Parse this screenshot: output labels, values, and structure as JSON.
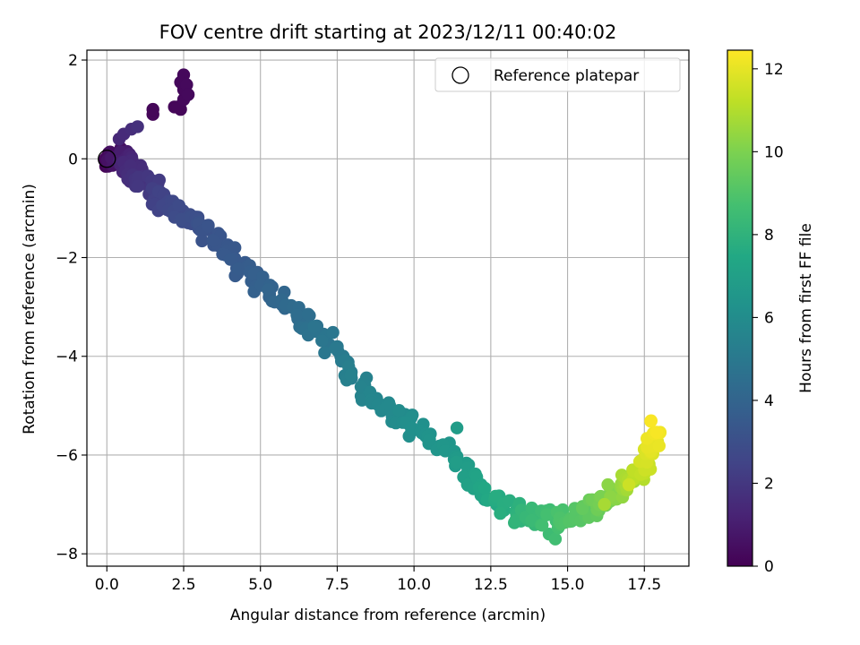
{
  "chart_data": {
    "type": "scatter",
    "title": "FOV centre drift starting at 2023/12/11 00:40:02",
    "xlabel": "Angular distance from reference (arcmin)",
    "ylabel": "Rotation from reference (arcmin)",
    "xlim": [
      -0.65,
      18.95
    ],
    "ylim": [
      -8.25,
      2.2
    ],
    "xticks": [
      0.0,
      2.5,
      5.0,
      7.5,
      10.0,
      12.5,
      15.0,
      17.5
    ],
    "xtick_labels": [
      "0.0",
      "2.5",
      "5.0",
      "7.5",
      "10.0",
      "12.5",
      "15.0",
      "17.5"
    ],
    "yticks": [
      2,
      0,
      -2,
      -4,
      -6,
      -8
    ],
    "ytick_labels": [
      "2",
      "0",
      "−2",
      "−4",
      "−6",
      "−8"
    ],
    "grid": true,
    "legend": {
      "position": "upper-right",
      "entries": [
        "Reference platepar"
      ]
    },
    "colorbar": {
      "label": "Hours from first FF file",
      "range": [
        0,
        12.45
      ],
      "colormap": "viridis",
      "ticks": [
        0,
        2,
        4,
        6,
        8,
        10,
        12
      ],
      "tick_labels": [
        "0",
        "2",
        "4",
        "6",
        "8",
        "10",
        "12"
      ]
    },
    "reference_point": {
      "x": 0.0,
      "y": 0.0,
      "name": "Reference platepar"
    },
    "anchors": [
      [
        0.0,
        0.0,
        0.0
      ],
      [
        0.3,
        0.05,
        0.6
      ],
      [
        0.6,
        -0.05,
        1.2
      ],
      [
        0.9,
        -0.3,
        1.6
      ],
      [
        1.3,
        -0.5,
        2.0
      ],
      [
        1.8,
        -0.8,
        2.4
      ],
      [
        2.3,
        -1.1,
        2.8
      ],
      [
        3.3,
        -1.5,
        3.2
      ],
      [
        4.5,
        -2.3,
        3.6
      ],
      [
        5.8,
        -3.0,
        4.2
      ],
      [
        7.0,
        -3.6,
        4.8
      ],
      [
        8.3,
        -4.6,
        5.5
      ],
      [
        9.7,
        -5.3,
        6.0
      ],
      [
        11.0,
        -5.9,
        6.5
      ],
      [
        12.3,
        -6.7,
        7.3
      ],
      [
        13.4,
        -7.2,
        8.0
      ],
      [
        14.5,
        -7.3,
        8.7
      ],
      [
        15.5,
        -7.2,
        9.2
      ],
      [
        16.3,
        -6.8,
        10.0
      ],
      [
        17.2,
        -6.5,
        11.0
      ],
      [
        17.6,
        -6.0,
        11.7
      ],
      [
        18.0,
        -5.4,
        12.4
      ]
    ],
    "extra_points": [
      [
        0.55,
        0.5,
        1.5
      ],
      [
        0.8,
        0.6,
        1.6
      ],
      [
        0.4,
        0.4,
        1.4
      ],
      [
        1.0,
        0.65,
        1.7
      ],
      [
        1.5,
        0.9,
        0.2
      ],
      [
        1.5,
        1.0,
        0.2
      ],
      [
        2.2,
        1.05,
        0.2
      ],
      [
        2.4,
        1.0,
        0.2
      ],
      [
        2.5,
        1.2,
        0.25
      ],
      [
        2.5,
        1.4,
        0.25
      ],
      [
        2.6,
        1.5,
        0.3
      ],
      [
        2.65,
        1.3,
        0.3
      ],
      [
        2.5,
        1.7,
        0.25
      ],
      [
        2.3,
        1.05,
        0.2
      ],
      [
        2.4,
        1.55,
        0.25
      ],
      [
        11.4,
        -5.45,
        6.8
      ],
      [
        11.7,
        -6.4,
        6.7
      ],
      [
        12.3,
        -6.9,
        7.1
      ],
      [
        14.4,
        -7.6,
        8.5
      ],
      [
        14.6,
        -7.7,
        8.6
      ],
      [
        16.2,
        -7.0,
        10.8
      ],
      [
        17.0,
        -6.6,
        11.5
      ]
    ]
  }
}
